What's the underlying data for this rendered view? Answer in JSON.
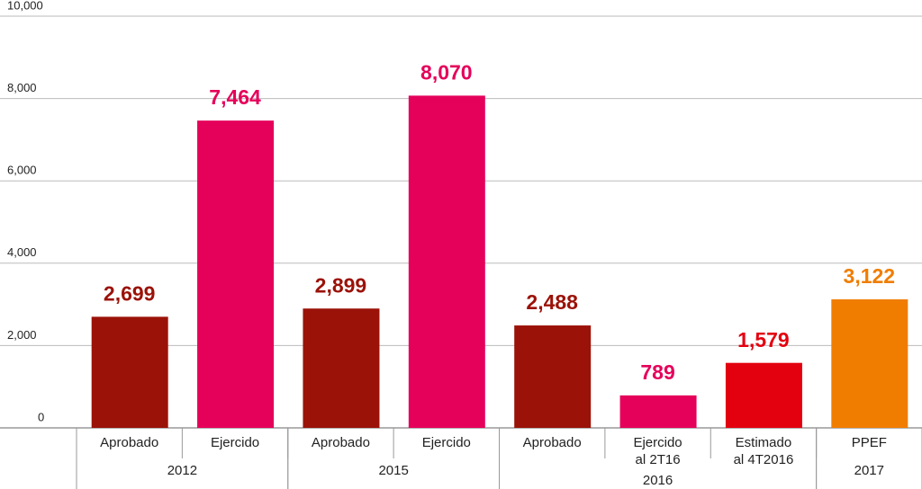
{
  "chart_data": {
    "type": "bar",
    "categories": [
      "Aprobado",
      "Ejercido",
      "Aprobado",
      "Ejercido",
      "Aprobado",
      [
        "Ejercido",
        "al 2T16"
      ],
      [
        "Estimado",
        "al 4T2016"
      ],
      "PPEF"
    ],
    "x_groups": [
      "2012",
      "2012",
      "2015",
      "2015",
      "2016",
      "2016",
      "2016",
      "2017"
    ],
    "values": [
      2699,
      7464,
      2899,
      8070,
      2488,
      789,
      1579,
      3122
    ],
    "value_labels": [
      "2,699",
      "7,464",
      "2,899",
      "8,070",
      "2,488",
      "789",
      "1,579",
      "3,122"
    ],
    "colors": [
      "#9b1208",
      "#e5005a",
      "#9b1208",
      "#e5005a",
      "#9b1208",
      "#e5005a",
      "#e3000f",
      "#f07d00"
    ],
    "ylim": [
      0,
      10000
    ],
    "yticks": [
      0,
      {
        "value": 2000,
        "label": "2,000"
      },
      {
        "value": 4000,
        "label": "4,000"
      },
      {
        "value": 6000,
        "label": "6,000"
      },
      {
        "value": 8000,
        "label": "8,000"
      },
      {
        "value": 10000,
        "label": "10,000"
      }
    ],
    "grid": true
  }
}
